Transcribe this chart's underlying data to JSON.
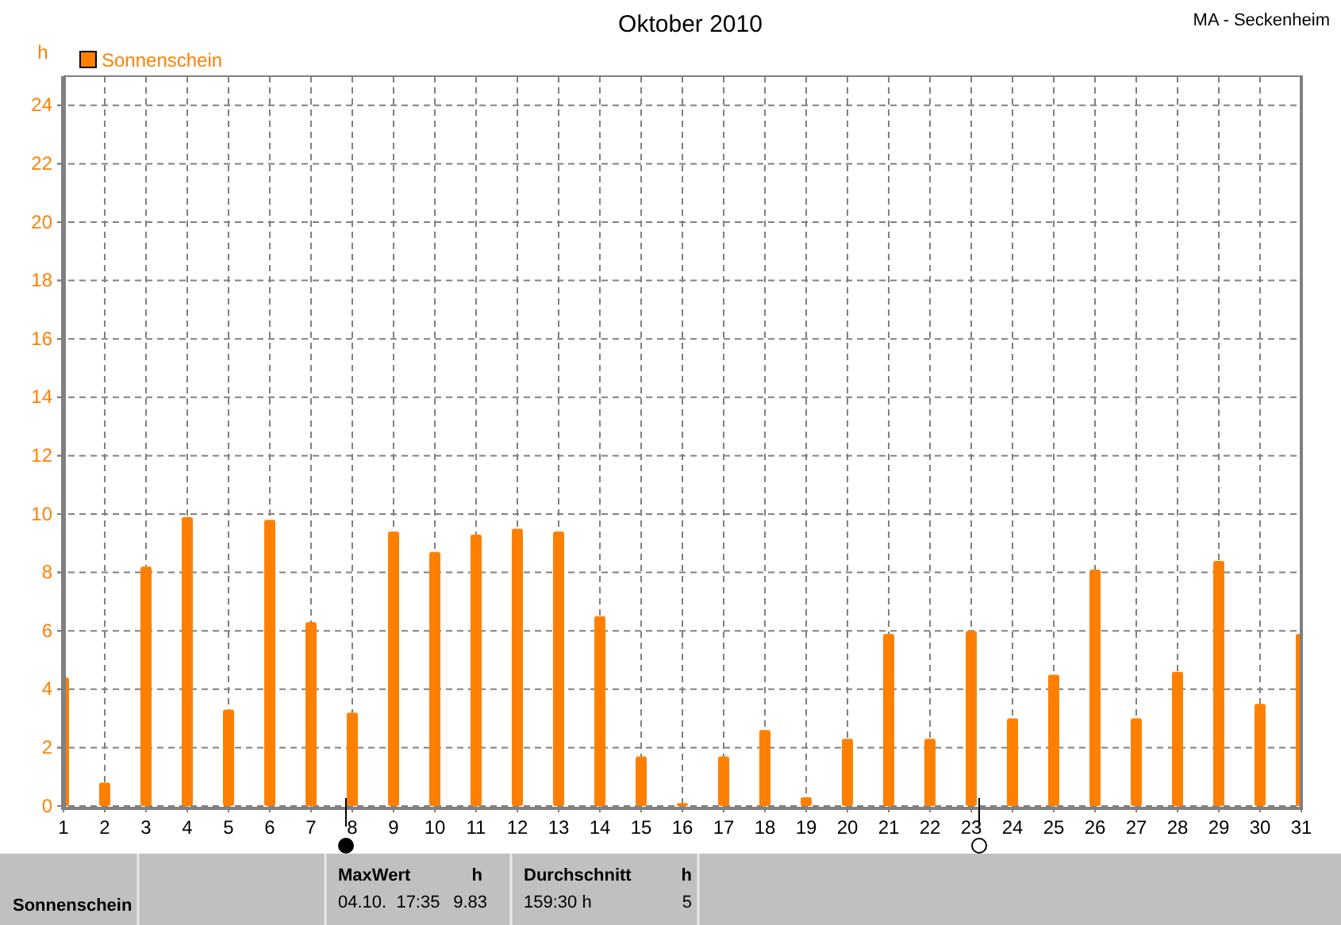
{
  "chart_data": {
    "type": "bar",
    "title": "Oktober 2010",
    "ylabel": "h",
    "x": [
      1,
      2,
      3,
      4,
      5,
      6,
      7,
      8,
      9,
      10,
      11,
      12,
      13,
      14,
      15,
      16,
      17,
      18,
      19,
      20,
      21,
      22,
      23,
      24,
      25,
      26,
      27,
      28,
      29,
      30,
      31
    ],
    "series": [
      {
        "name": "Sonnenschein",
        "color": "#ff8000",
        "values": [
          4.4,
          0.8,
          8.2,
          9.9,
          3.3,
          9.8,
          6.3,
          3.2,
          9.4,
          8.7,
          9.3,
          9.5,
          9.4,
          6.5,
          1.7,
          0.1,
          1.7,
          2.6,
          0.3,
          2.3,
          5.9,
          2.3,
          6.0,
          3.0,
          4.5,
          8.1,
          3.0,
          4.6,
          8.4,
          3.5,
          5.9
        ]
      }
    ],
    "xlim": [
      1,
      31
    ],
    "xticks": [
      1,
      2,
      3,
      4,
      5,
      6,
      7,
      8,
      9,
      10,
      11,
      12,
      13,
      14,
      15,
      16,
      17,
      18,
      19,
      20,
      21,
      22,
      23,
      24,
      25,
      26,
      27,
      28,
      29,
      30,
      31
    ],
    "ylim": [
      0,
      25
    ],
    "yticks": [
      0,
      2,
      4,
      6,
      8,
      10,
      12,
      14,
      16,
      18,
      20,
      22,
      24
    ],
    "grid": true,
    "legend": "top left",
    "annotations": [
      "MA - Seckenheim",
      "Sonnenschein",
      "MaxWert",
      "h",
      "04.10.  17:35",
      "9.83",
      "Durchschnitt",
      "h",
      "159:30 h",
      "5"
    ]
  }
}
